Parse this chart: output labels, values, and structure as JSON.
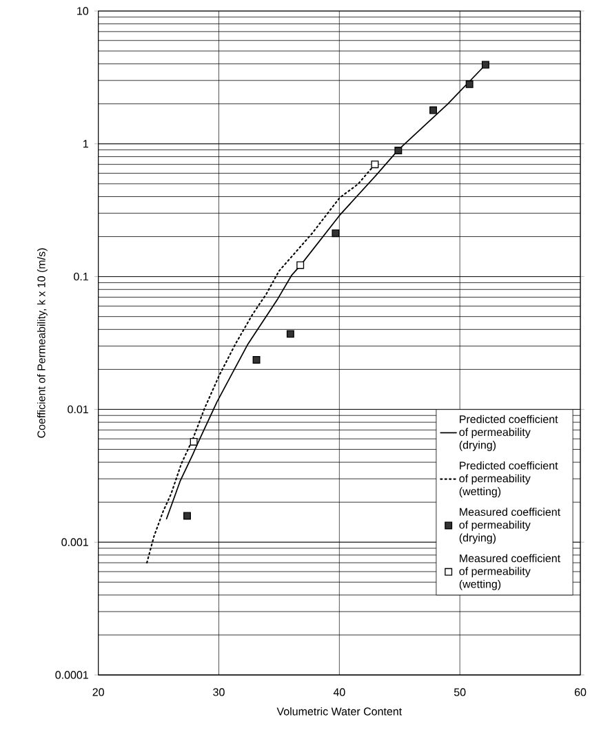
{
  "chart_data": {
    "type": "line",
    "xlabel": "Volumetric Water Content",
    "ylabel": "Coefficient of Permeability, k x 10 (m/s)",
    "xlim": [
      20,
      60
    ],
    "xticks": [
      20,
      30,
      40,
      50,
      60
    ],
    "ylim": [
      0.0001,
      10
    ],
    "yticks": [
      0.0001,
      0.001,
      0.01,
      0.1,
      1,
      10
    ],
    "log": "y",
    "grid": true,
    "legend": "bottom right",
    "series": [
      {
        "name": "Predicted coefficient of permeability (drying)",
        "type": "line",
        "color": "#000000",
        "line_style": "solid",
        "marker": "none",
        "x": [
          25.66,
          26.8,
          27.85,
          28.19,
          28.7,
          29.85,
          31.27,
          32.41,
          33.37,
          34.89,
          36.03,
          36.76,
          40.03,
          43.09,
          44.89,
          48.99,
          52.13
        ],
        "values": [
          0.0015,
          0.0029,
          0.0046,
          0.0054,
          0.0068,
          0.0114,
          0.0199,
          0.031,
          0.042,
          0.068,
          0.102,
          0.121,
          0.29,
          0.585,
          0.9,
          1.99,
          3.94
        ]
      },
      {
        "name": "Predicted coefficient of permeability (wetting)",
        "type": "line",
        "color": "#000000",
        "line_style": "dotted",
        "marker": "none",
        "x": [
          24.03,
          24.61,
          25.37,
          26.03,
          26.89,
          27.85,
          28.8,
          30.03,
          31.37,
          32.8,
          33.94,
          34.99,
          37.75,
          40.03,
          41.56,
          42.95
        ],
        "values": [
          0.0007,
          0.0011,
          0.0017,
          0.0023,
          0.0039,
          0.006,
          0.0101,
          0.018,
          0.031,
          0.052,
          0.074,
          0.11,
          0.212,
          0.393,
          0.498,
          0.7
        ]
      },
      {
        "name": "Measured coefficient of permeability (drying)",
        "type": "scatter",
        "color": "#333333",
        "marker": "square",
        "x": [
          27.37,
          33.12,
          35.94,
          39.69,
          44.89,
          47.79,
          50.8,
          52.13
        ],
        "values": [
          0.00158,
          0.0236,
          0.037,
          0.212,
          0.89,
          1.79,
          2.81,
          3.94
        ]
      },
      {
        "name": "Measured coefficient of permeability (wetting)",
        "type": "scatter",
        "color": "#ffffff",
        "marker": "square",
        "x": [
          27.92,
          36.76,
          42.95
        ],
        "values": [
          0.0057,
          0.122,
          0.7
        ]
      }
    ]
  }
}
